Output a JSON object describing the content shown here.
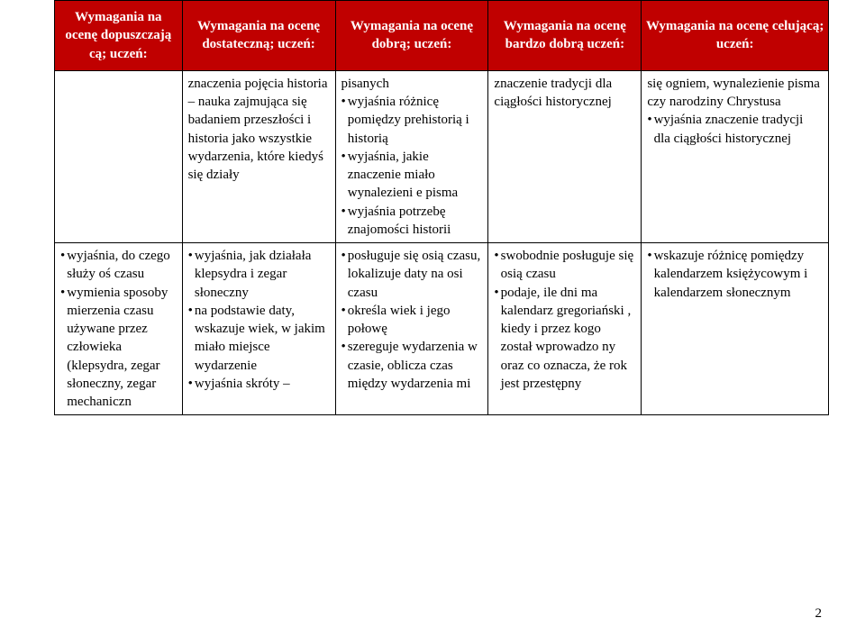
{
  "colors": {
    "header_bg": "#c00000",
    "header_fg": "#ffffff",
    "border": "#000000",
    "page_bg": "#ffffff"
  },
  "page_number": "2",
  "columns": [
    {
      "width": 15,
      "header": "Wymagania na ocenę dopuszczają cą; uczeń:"
    },
    {
      "width": 18,
      "header": "Wymagania na ocenę dostateczną; uczeń:"
    },
    {
      "width": 18,
      "header": "Wymagania na ocenę dobrą; uczeń:"
    },
    {
      "width": 18,
      "header": "Wymagania na ocenę bardzo dobrą uczeń:"
    },
    {
      "width": 22,
      "header": "Wymagania na ocenę celującą; uczeń:"
    }
  ],
  "rows": [
    {
      "cells": [
        {
          "items": []
        },
        {
          "items": [
            {
              "plain": "znaczenia pojęcia historia – nauka zajmująca się badaniem przeszłości i historia jako wszystkie wydarzenia, które kiedyś się działy"
            }
          ]
        },
        {
          "items": [
            {
              "plain": "pisanych"
            },
            {
              "bullet": "wyjaśnia różnicę pomiędzy prehistorią i historią"
            },
            {
              "bullet": "wyjaśnia, jakie znaczenie miało wynalezieni e pisma"
            },
            {
              "bullet": "wyjaśnia potrzebę znajomości historii"
            }
          ]
        },
        {
          "items": [
            {
              "plain": "znaczenie tradycji dla ciągłości historycznej"
            }
          ]
        },
        {
          "items": [
            {
              "plain": "się ogniem, wynalezienie pisma czy narodziny Chrystusa"
            },
            {
              "bullet": "wyjaśnia znaczenie tradycji dla ciągłości historycznej"
            }
          ]
        }
      ]
    },
    {
      "cells": [
        {
          "items": [
            {
              "bullet": "wyjaśnia, do czego służy oś czasu"
            },
            {
              "bullet": "wymienia sposoby mierzenia czasu używane przez człowieka (klepsydra, zegar słoneczny, zegar mechaniczn"
            }
          ]
        },
        {
          "items": [
            {
              "bullet": "wyjaśnia, jak działała klepsydra i zegar słoneczny"
            },
            {
              "bullet": "na podstawie daty, wskazuje wiek, w jakim miało miejsce wydarzenie"
            },
            {
              "bullet": "wyjaśnia skróty –"
            }
          ]
        },
        {
          "items": [
            {
              "bullet": "posługuje się osią czasu, lokalizuje daty na osi czasu"
            },
            {
              "bullet": "określa wiek i jego połowę"
            },
            {
              "bullet": "szereguje wydarzenia w czasie, oblicza czas między wydarzenia mi"
            }
          ]
        },
        {
          "items": [
            {
              "bullet": "swobodnie posługuje się osią czasu"
            },
            {
              "bullet": "podaje, ile dni ma kalendarz gregoriański , kiedy i przez kogo został wprowadzo ny oraz co oznacza, że rok jest przestępny"
            }
          ]
        },
        {
          "items": [
            {
              "bullet": "wskazuje różnicę pomiędzy kalendarzem księżycowym i kalendarzem słonecznym"
            }
          ]
        }
      ]
    }
  ]
}
